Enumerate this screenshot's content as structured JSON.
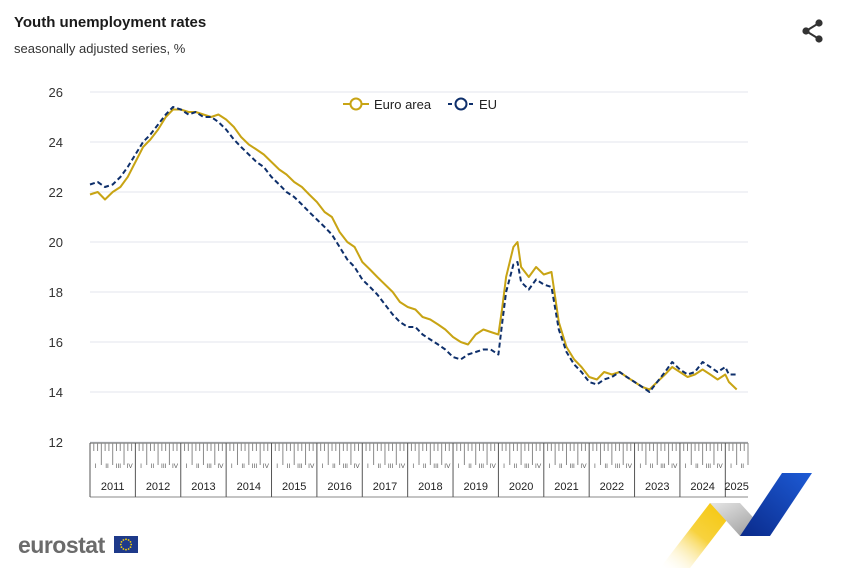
{
  "header": {
    "title": "Youth unemployment rates",
    "subtitle": "seasonally adjusted series, %"
  },
  "logo": {
    "text": "eurostat"
  },
  "icons": {
    "share": "share-icon",
    "flag": "eu-flag-icon"
  },
  "colors": {
    "euro_area": "#c8a414",
    "eu": "#0e2f6b",
    "grid": "#e3e6ec",
    "flag_blue": "#1e3a8a",
    "flag_star": "#f5d20a"
  },
  "chart_data": {
    "type": "line",
    "title": "Youth unemployment rates",
    "subtitle": "seasonally adjusted series, %",
    "ylim": [
      12,
      26
    ],
    "yticks": [
      12,
      14,
      16,
      18,
      20,
      22,
      24,
      26
    ],
    "xrange": [
      2011.0,
      2025.5
    ],
    "years": [
      "2011",
      "2012",
      "2013",
      "2014",
      "2015",
      "2016",
      "2017",
      "2018",
      "2019",
      "2020",
      "2021",
      "2022",
      "2023",
      "2024",
      "2025"
    ],
    "quarters": [
      "I",
      "II",
      "III",
      "IV"
    ],
    "grid": true,
    "legend": "top-center",
    "series": [
      {
        "name": "Euro area",
        "style": "solid",
        "points": [
          [
            2011.0,
            21.9
          ],
          [
            2011.17,
            22.0
          ],
          [
            2011.33,
            21.7
          ],
          [
            2011.5,
            22.0
          ],
          [
            2011.67,
            22.2
          ],
          [
            2011.83,
            22.6
          ],
          [
            2012.0,
            23.2
          ],
          [
            2012.17,
            23.8
          ],
          [
            2012.33,
            24.1
          ],
          [
            2012.5,
            24.5
          ],
          [
            2012.67,
            25.0
          ],
          [
            2012.83,
            25.3
          ],
          [
            2013.0,
            25.3
          ],
          [
            2013.17,
            25.2
          ],
          [
            2013.33,
            25.2
          ],
          [
            2013.5,
            25.1
          ],
          [
            2013.67,
            25.0
          ],
          [
            2013.83,
            25.1
          ],
          [
            2014.0,
            24.9
          ],
          [
            2014.17,
            24.6
          ],
          [
            2014.33,
            24.2
          ],
          [
            2014.5,
            23.9
          ],
          [
            2014.67,
            23.7
          ],
          [
            2014.83,
            23.5
          ],
          [
            2015.0,
            23.2
          ],
          [
            2015.17,
            22.9
          ],
          [
            2015.33,
            22.7
          ],
          [
            2015.5,
            22.4
          ],
          [
            2015.67,
            22.2
          ],
          [
            2015.83,
            21.9
          ],
          [
            2016.0,
            21.6
          ],
          [
            2016.17,
            21.2
          ],
          [
            2016.33,
            21.0
          ],
          [
            2016.5,
            20.4
          ],
          [
            2016.67,
            20.0
          ],
          [
            2016.83,
            19.8
          ],
          [
            2017.0,
            19.2
          ],
          [
            2017.17,
            18.9
          ],
          [
            2017.33,
            18.6
          ],
          [
            2017.5,
            18.3
          ],
          [
            2017.67,
            18.0
          ],
          [
            2017.83,
            17.6
          ],
          [
            2018.0,
            17.4
          ],
          [
            2018.17,
            17.3
          ],
          [
            2018.33,
            17.0
          ],
          [
            2018.5,
            16.9
          ],
          [
            2018.67,
            16.7
          ],
          [
            2018.83,
            16.5
          ],
          [
            2019.0,
            16.2
          ],
          [
            2019.17,
            16.0
          ],
          [
            2019.33,
            15.9
          ],
          [
            2019.5,
            16.3
          ],
          [
            2019.67,
            16.5
          ],
          [
            2019.83,
            16.4
          ],
          [
            2020.0,
            16.3
          ],
          [
            2020.08,
            17.3
          ],
          [
            2020.17,
            18.6
          ],
          [
            2020.33,
            19.8
          ],
          [
            2020.42,
            20.0
          ],
          [
            2020.5,
            19.0
          ],
          [
            2020.67,
            18.6
          ],
          [
            2020.83,
            19.0
          ],
          [
            2021.0,
            18.7
          ],
          [
            2021.17,
            18.8
          ],
          [
            2021.33,
            16.8
          ],
          [
            2021.5,
            15.8
          ],
          [
            2021.67,
            15.3
          ],
          [
            2021.83,
            15.0
          ],
          [
            2022.0,
            14.6
          ],
          [
            2022.17,
            14.5
          ],
          [
            2022.33,
            14.8
          ],
          [
            2022.5,
            14.7
          ],
          [
            2022.67,
            14.8
          ],
          [
            2022.83,
            14.6
          ],
          [
            2023.0,
            14.4
          ],
          [
            2023.17,
            14.2
          ],
          [
            2023.33,
            14.1
          ],
          [
            2023.5,
            14.4
          ],
          [
            2023.67,
            14.7
          ],
          [
            2023.83,
            15.0
          ],
          [
            2024.0,
            14.8
          ],
          [
            2024.17,
            14.6
          ],
          [
            2024.33,
            14.7
          ],
          [
            2024.5,
            14.9
          ],
          [
            2024.67,
            14.7
          ],
          [
            2024.83,
            14.5
          ],
          [
            2025.0,
            14.7
          ],
          [
            2025.08,
            14.4
          ],
          [
            2025.25,
            14.1
          ]
        ]
      },
      {
        "name": "EU",
        "style": "dashed",
        "points": [
          [
            2011.0,
            22.3
          ],
          [
            2011.17,
            22.4
          ],
          [
            2011.33,
            22.2
          ],
          [
            2011.5,
            22.3
          ],
          [
            2011.67,
            22.6
          ],
          [
            2011.83,
            23.0
          ],
          [
            2012.0,
            23.5
          ],
          [
            2012.17,
            24.0
          ],
          [
            2012.33,
            24.3
          ],
          [
            2012.5,
            24.7
          ],
          [
            2012.67,
            25.1
          ],
          [
            2012.83,
            25.4
          ],
          [
            2013.0,
            25.3
          ],
          [
            2013.17,
            25.1
          ],
          [
            2013.33,
            25.2
          ],
          [
            2013.5,
            25.0
          ],
          [
            2013.67,
            25.0
          ],
          [
            2013.83,
            24.8
          ],
          [
            2014.0,
            24.5
          ],
          [
            2014.17,
            24.1
          ],
          [
            2014.33,
            23.8
          ],
          [
            2014.5,
            23.5
          ],
          [
            2014.67,
            23.2
          ],
          [
            2014.83,
            23.0
          ],
          [
            2015.0,
            22.6
          ],
          [
            2015.17,
            22.3
          ],
          [
            2015.33,
            22.0
          ],
          [
            2015.5,
            21.8
          ],
          [
            2015.67,
            21.5
          ],
          [
            2015.83,
            21.2
          ],
          [
            2016.0,
            20.9
          ],
          [
            2016.17,
            20.6
          ],
          [
            2016.33,
            20.3
          ],
          [
            2016.5,
            19.8
          ],
          [
            2016.67,
            19.3
          ],
          [
            2016.83,
            19.0
          ],
          [
            2017.0,
            18.5
          ],
          [
            2017.17,
            18.2
          ],
          [
            2017.33,
            17.9
          ],
          [
            2017.5,
            17.5
          ],
          [
            2017.67,
            17.1
          ],
          [
            2017.83,
            16.8
          ],
          [
            2018.0,
            16.6
          ],
          [
            2018.17,
            16.6
          ],
          [
            2018.33,
            16.3
          ],
          [
            2018.5,
            16.1
          ],
          [
            2018.67,
            15.9
          ],
          [
            2018.83,
            15.7
          ],
          [
            2019.0,
            15.4
          ],
          [
            2019.17,
            15.3
          ],
          [
            2019.33,
            15.5
          ],
          [
            2019.5,
            15.6
          ],
          [
            2019.67,
            15.7
          ],
          [
            2019.83,
            15.7
          ],
          [
            2020.0,
            15.5
          ],
          [
            2020.08,
            16.7
          ],
          [
            2020.17,
            18.0
          ],
          [
            2020.33,
            19.1
          ],
          [
            2020.42,
            19.2
          ],
          [
            2020.5,
            18.4
          ],
          [
            2020.67,
            18.1
          ],
          [
            2020.83,
            18.5
          ],
          [
            2021.0,
            18.3
          ],
          [
            2021.17,
            18.2
          ],
          [
            2021.33,
            16.5
          ],
          [
            2021.5,
            15.6
          ],
          [
            2021.67,
            15.1
          ],
          [
            2021.83,
            14.8
          ],
          [
            2022.0,
            14.4
          ],
          [
            2022.17,
            14.3
          ],
          [
            2022.33,
            14.5
          ],
          [
            2022.5,
            14.6
          ],
          [
            2022.67,
            14.8
          ],
          [
            2022.83,
            14.6
          ],
          [
            2023.0,
            14.4
          ],
          [
            2023.17,
            14.2
          ],
          [
            2023.33,
            14.0
          ],
          [
            2023.5,
            14.4
          ],
          [
            2023.67,
            14.8
          ],
          [
            2023.83,
            15.2
          ],
          [
            2024.0,
            14.9
          ],
          [
            2024.17,
            14.7
          ],
          [
            2024.33,
            14.8
          ],
          [
            2024.5,
            15.2
          ],
          [
            2024.67,
            15.0
          ],
          [
            2024.83,
            14.8
          ],
          [
            2025.0,
            15.0
          ],
          [
            2025.08,
            14.7
          ],
          [
            2025.25,
            14.7
          ]
        ]
      }
    ]
  }
}
